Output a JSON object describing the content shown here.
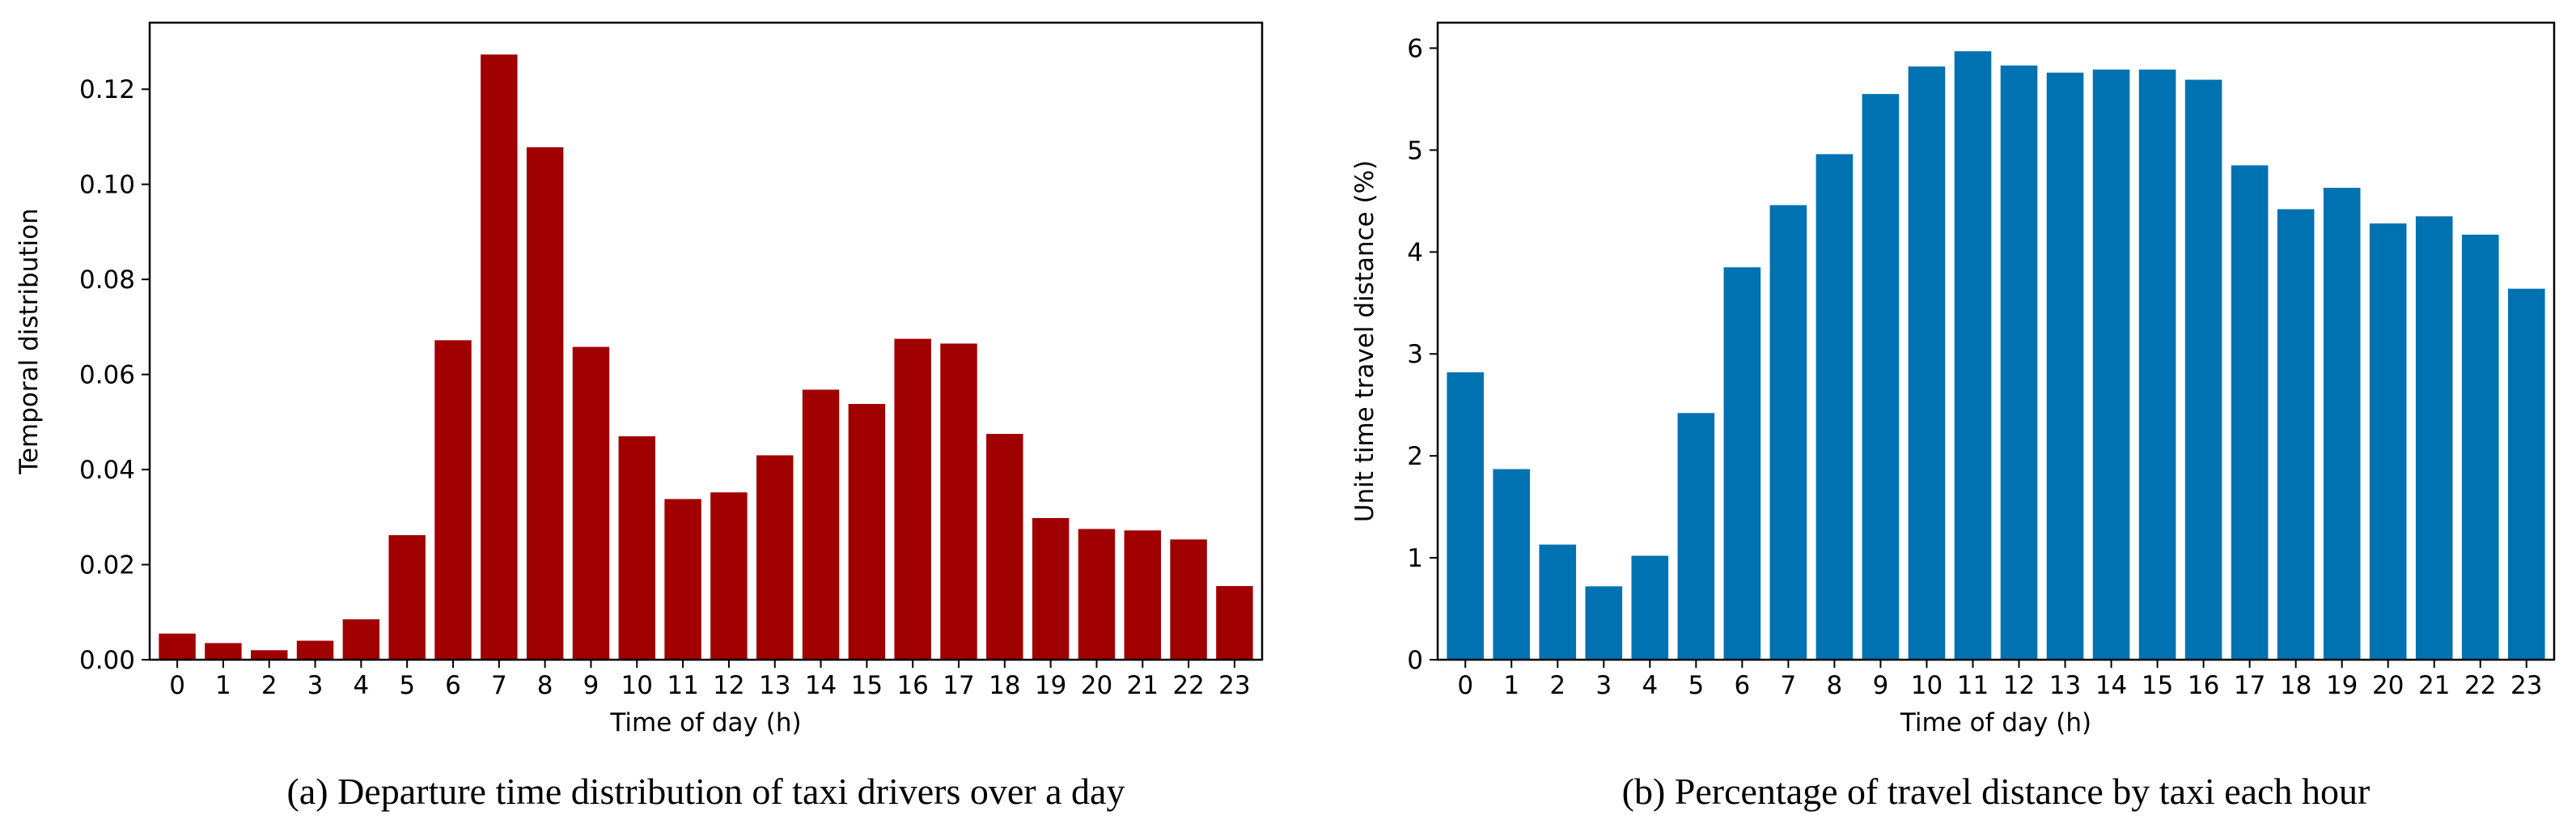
{
  "chart_data": [
    {
      "type": "bar",
      "caption": "(a) Departure time distribution of taxi drivers over a day",
      "xlabel": "Time of day (h)",
      "ylabel": "Temporal distribution",
      "categories": [
        "0",
        "1",
        "2",
        "3",
        "4",
        "5",
        "6",
        "7",
        "8",
        "9",
        "10",
        "11",
        "12",
        "13",
        "14",
        "15",
        "16",
        "17",
        "18",
        "19",
        "20",
        "21",
        "22",
        "23"
      ],
      "values": [
        0.0055,
        0.0035,
        0.002,
        0.004,
        0.0085,
        0.0262,
        0.0672,
        0.1273,
        0.1078,
        0.0658,
        0.047,
        0.0338,
        0.0352,
        0.043,
        0.0568,
        0.0538,
        0.0675,
        0.0665,
        0.0475,
        0.0298,
        0.0275,
        0.0272,
        0.0253,
        0.0155
      ],
      "ylim": [
        0,
        0.134
      ],
      "yticks": [
        0,
        0.02,
        0.04,
        0.06,
        0.08,
        0.1,
        0.12
      ],
      "ytick_labels": [
        "0.00",
        "0.02",
        "0.04",
        "0.06",
        "0.08",
        "0.10",
        "0.12"
      ],
      "color": "#a00000",
      "grid": false
    },
    {
      "type": "bar",
      "caption": "(b) Percentage of travel distance by taxi each hour",
      "xlabel": "Time of day (h)",
      "ylabel": "Unit time travel distance (%)",
      "categories": [
        "0",
        "1",
        "2",
        "3",
        "4",
        "5",
        "6",
        "7",
        "8",
        "9",
        "10",
        "11",
        "12",
        "13",
        "14",
        "15",
        "16",
        "17",
        "18",
        "19",
        "20",
        "21",
        "22",
        "23"
      ],
      "values": [
        2.82,
        1.87,
        1.13,
        0.72,
        1.02,
        2.42,
        3.85,
        4.46,
        4.96,
        5.55,
        5.82,
        5.97,
        5.83,
        5.76,
        5.79,
        5.79,
        5.69,
        4.85,
        4.42,
        4.63,
        4.28,
        4.35,
        4.17,
        3.64
      ],
      "ylim": [
        0,
        6.25
      ],
      "yticks": [
        0,
        1,
        2,
        3,
        4,
        5,
        6
      ],
      "ytick_labels": [
        "0",
        "1",
        "2",
        "3",
        "4",
        "5",
        "6"
      ],
      "color": "#0072b2",
      "grid": false
    }
  ]
}
